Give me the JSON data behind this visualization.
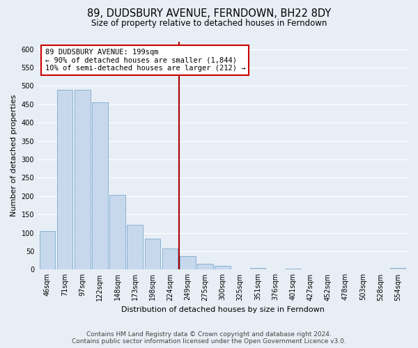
{
  "title": "89, DUDSBURY AVENUE, FERNDOWN, BH22 8DY",
  "subtitle": "Size of property relative to detached houses in Ferndown",
  "xlabel": "Distribution of detached houses by size in Ferndown",
  "ylabel": "Number of detached properties",
  "bar_labels": [
    "46sqm",
    "71sqm",
    "97sqm",
    "122sqm",
    "148sqm",
    "173sqm",
    "198sqm",
    "224sqm",
    "249sqm",
    "275sqm",
    "300sqm",
    "325sqm",
    "351sqm",
    "376sqm",
    "401sqm",
    "427sqm",
    "452sqm",
    "478sqm",
    "503sqm",
    "528sqm",
    "554sqm"
  ],
  "bar_values": [
    105,
    490,
    490,
    455,
    203,
    122,
    83,
    57,
    36,
    16,
    10,
    0,
    5,
    0,
    2,
    0,
    0,
    0,
    0,
    0,
    5
  ],
  "bar_color": "#c8d8ec",
  "bar_edge_color": "#7aaad0",
  "vline_x": 7.5,
  "vline_color": "#aa0000",
  "annotation_text": "89 DUDSBURY AVENUE: 199sqm\n← 90% of detached houses are smaller (1,844)\n10% of semi-detached houses are larger (212) →",
  "annotation_box_color": "#ffffff",
  "annotation_box_edge": "#cc0000",
  "ylim": [
    0,
    620
  ],
  "yticks": [
    0,
    50,
    100,
    150,
    200,
    250,
    300,
    350,
    400,
    450,
    500,
    550,
    600
  ],
  "footer_line1": "Contains HM Land Registry data © Crown copyright and database right 2024.",
  "footer_line2": "Contains public sector information licensed under the Open Government Licence v3.0.",
  "bg_color": "#e8eef5",
  "plot_bg_color": "#e8eef5",
  "grid_color": "#ffffff",
  "title_fontsize": 10.5,
  "subtitle_fontsize": 8.5,
  "label_fontsize": 8,
  "tick_fontsize": 7,
  "footer_fontsize": 6.5
}
